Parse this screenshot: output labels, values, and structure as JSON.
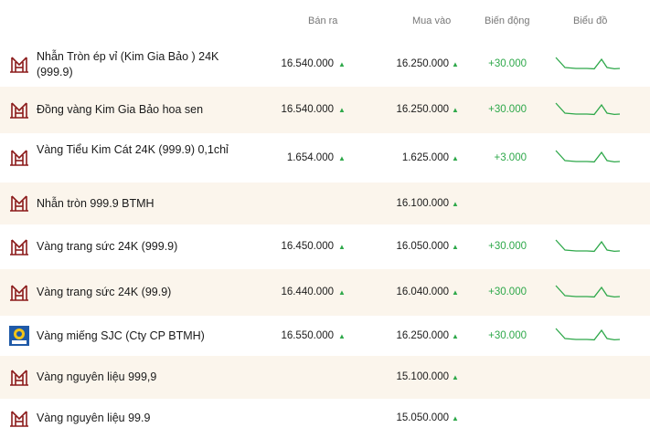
{
  "header": {
    "sell": "Bán ra",
    "buy": "Mua vào",
    "change": "Biến động",
    "chart": "Biểu đồ"
  },
  "arrow_symbol": "▲",
  "colors": {
    "up_green": "#2ea84a",
    "logo_btmh": "#8b1a1a",
    "logo_sjc_bg": "#1f5aa8",
    "logo_sjc_mark": "#f2c418",
    "alt_row_bg": "#fbf5ec"
  },
  "rows": [
    {
      "logo": "btmh-logo-icon",
      "name": "Nhẫn Tròn ép vỉ (Kim Gia Bảo ) 24K (999.9)",
      "sell": "16.540.000",
      "buy": "16.250.000",
      "change": "+30.000",
      "sparkline": [
        0.9,
        0.35,
        0.3,
        0.3,
        0.28,
        0.8,
        0.35,
        0.28,
        0.3
      ],
      "has_sell": true,
      "has_change": true
    },
    {
      "logo": "btmh-logo-icon",
      "name": "Đồng vàng Kim Gia Bảo hoa sen",
      "sell": "16.540.000",
      "buy": "16.250.000",
      "change": "+30.000",
      "sparkline": [
        0.9,
        0.35,
        0.3,
        0.3,
        0.28,
        0.8,
        0.35,
        0.28,
        0.3
      ],
      "has_sell": true,
      "has_change": true
    },
    {
      "logo": "btmh-logo-icon",
      "name": "Vàng Tiểu Kim Cát 24K (999.9) 0,1chỉ",
      "sell": "1.654.000",
      "buy": "1.625.000",
      "change": "+3.000",
      "sparkline": [
        0.9,
        0.35,
        0.3,
        0.3,
        0.28,
        0.8,
        0.35,
        0.28,
        0.3
      ],
      "has_sell": true,
      "has_change": true
    },
    {
      "logo": "btmh-logo-icon",
      "name": "Nhẫn tròn 999.9 BTMH",
      "sell": "",
      "buy": "16.100.000",
      "change": "",
      "sparkline": [],
      "has_sell": false,
      "has_change": false
    },
    {
      "logo": "btmh-logo-icon",
      "name": "Vàng trang sức 24K (999.9)",
      "sell": "16.450.000",
      "buy": "16.050.000",
      "change": "+30.000",
      "sparkline": [
        0.9,
        0.35,
        0.3,
        0.3,
        0.28,
        0.8,
        0.35,
        0.28,
        0.3
      ],
      "has_sell": true,
      "has_change": true
    },
    {
      "logo": "btmh-logo-icon",
      "name": "Vàng trang sức 24K (99.9)",
      "sell": "16.440.000",
      "buy": "16.040.000",
      "change": "+30.000",
      "sparkline": [
        0.9,
        0.35,
        0.3,
        0.3,
        0.28,
        0.8,
        0.35,
        0.28,
        0.3
      ],
      "has_sell": true,
      "has_change": true
    },
    {
      "logo": "sjc-logo-icon",
      "name": "Vàng miếng SJC (Cty CP BTMH)",
      "sell": "16.550.000",
      "buy": "16.250.000",
      "change": "+30.000",
      "sparkline": [
        0.9,
        0.35,
        0.3,
        0.3,
        0.28,
        0.8,
        0.35,
        0.28,
        0.3
      ],
      "has_sell": true,
      "has_change": true
    },
    {
      "logo": "btmh-logo-icon",
      "name": "Vàng nguyên liệu 999,9",
      "sell": "",
      "buy": "15.100.000",
      "change": "",
      "sparkline": [],
      "has_sell": false,
      "has_change": false
    },
    {
      "logo": "btmh-logo-icon",
      "name": "Vàng nguyên liệu 99.9",
      "sell": "",
      "buy": "15.050.000",
      "change": "",
      "sparkline": [],
      "has_sell": false,
      "has_change": false
    }
  ]
}
